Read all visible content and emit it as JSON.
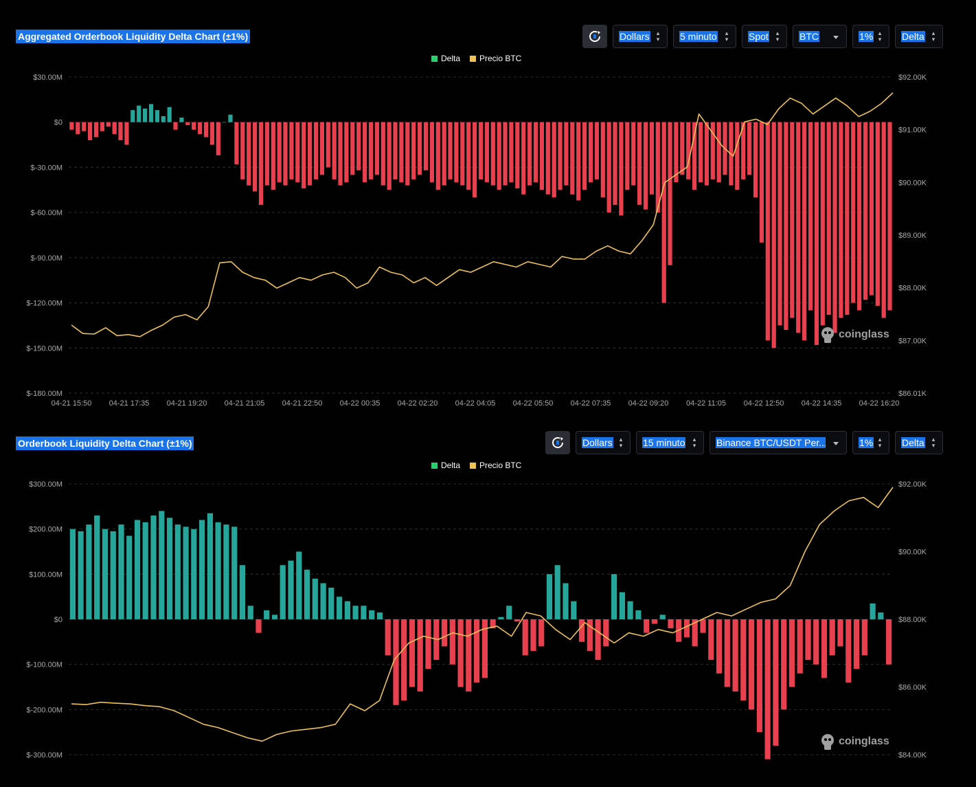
{
  "colors": {
    "background": "#000000",
    "positive": "#26a69a",
    "negative": "#e9404f",
    "price": "#f0c157",
    "grid": "#2a2d33",
    "axis_text": "#a9a9a9",
    "selection": "#1a73e8"
  },
  "brand": {
    "watermark": "coinglass",
    "icon": "coinglass-logo-icon"
  },
  "panels": [
    {
      "title": "Aggregated Orderbook Liquidity Delta Chart (±1%)",
      "controls": {
        "refresh_icon": "refresh-icon",
        "unit": "Dollars",
        "interval": "5 minuto",
        "market": "Spot",
        "coin": "BTC",
        "range": "1%",
        "mode": "Delta"
      },
      "legend": {
        "delta": "Delta",
        "price": "Precio BTC"
      }
    },
    {
      "title": "Orderbook Liquidity Delta Chart (±1%)",
      "controls": {
        "refresh_icon": "refresh-icon",
        "unit": "Dollars",
        "interval": "15 minuto",
        "pair": "Binance BTC/USDT Per...",
        "range": "1%",
        "mode": "Delta"
      },
      "legend": {
        "delta": "Delta",
        "price": "Precio BTC"
      }
    }
  ],
  "chart_data": [
    {
      "type": "bar",
      "title": "Aggregated Orderbook Liquidity Delta Chart (±1%)",
      "x_tick_labels": [
        "04-21 15:50",
        "04-21 17:35",
        "04-21 19:20",
        "04-21 21:05",
        "04-21 22:50",
        "04-22 00:35",
        "04-22 02:20",
        "04-22 04:05",
        "04-22 05:50",
        "04-22 07:35",
        "04-22 09:20",
        "04-22 11:05",
        "04-22 12:50",
        "04-22 14:35",
        "04-22 16:20"
      ],
      "y_left": {
        "ticks": [
          "$30.00M",
          "$0",
          "$-30.00M",
          "$-60.00M",
          "$-90.00M",
          "$-120.00M",
          "$-150.00M",
          "$-180.00M"
        ],
        "range": [
          -180,
          30
        ],
        "unit": "M USD"
      },
      "y_right": {
        "ticks": [
          "$92.00K",
          "$91.00K",
          "$90.00K",
          "$89.00K",
          "$88.00K",
          "$87.00K",
          "$86.01K"
        ],
        "range": [
          86010,
          92000
        ]
      },
      "grid": true,
      "legend_position": "top-center",
      "series": [
        {
          "name": "Delta",
          "kind": "bar",
          "sampled_values_M": [
            -5,
            -8,
            -6,
            -12,
            -10,
            -6,
            -3,
            -8,
            -12,
            -15,
            8,
            11,
            9,
            12,
            8,
            4,
            10,
            -5,
            3,
            -2,
            -5,
            -8,
            -10,
            -15,
            -22,
            0,
            5,
            -28,
            -38,
            -42,
            -46,
            -55,
            -42,
            -45,
            -40,
            -42,
            -38,
            -40,
            -44,
            -42,
            -38,
            -35,
            -30,
            -38,
            -42,
            -40,
            -35,
            -32,
            -40,
            -38,
            -35,
            -42,
            -45,
            -38,
            -40,
            -42,
            -38,
            -35,
            -32,
            -40,
            -45,
            -42,
            -38,
            -40,
            -42,
            -45,
            -50,
            -38,
            -40,
            -42,
            -45,
            -42,
            -40,
            -44,
            -48,
            -42,
            -40,
            -45,
            -48,
            -50,
            -45,
            -42,
            -48,
            -52,
            -45,
            -40,
            -38,
            -50,
            -60,
            -55,
            -62,
            -45,
            -42,
            -55,
            -58,
            -48,
            -60,
            -120,
            -95,
            -40,
            -35,
            -38,
            -45,
            -40,
            -42,
            -38,
            -40,
            -35,
            -42,
            -45,
            -38,
            -35,
            -50,
            -80,
            -145,
            -150,
            -135,
            -138,
            -130,
            -140,
            -145,
            -125,
            -148,
            -135,
            -128,
            -140,
            -130,
            -128,
            -120,
            -125,
            -118,
            -115,
            -122,
            -130,
            -125
          ],
          "color": "#26a69a / #e9404f"
        },
        {
          "name": "Precio BTC",
          "kind": "line",
          "sampled_values": [
            87300,
            87140,
            87130,
            87250,
            87100,
            87120,
            87080,
            87200,
            87300,
            87450,
            87500,
            87400,
            87650,
            88480,
            88500,
            88300,
            88200,
            88150,
            88000,
            88100,
            88200,
            88150,
            88250,
            88300,
            88200,
            88000,
            88100,
            88400,
            88300,
            88250,
            88100,
            88200,
            88050,
            88200,
            88350,
            88300,
            88400,
            88500,
            88450,
            88400,
            88500,
            88450,
            88400,
            88600,
            88550,
            88550,
            88700,
            88800,
            88700,
            88650,
            88900,
            89200,
            90000,
            90150,
            90300,
            91300,
            91000,
            90700,
            90500,
            91150,
            91200,
            91100,
            91400,
            91600,
            91500,
            91300,
            91450,
            91600,
            91450,
            91250,
            91350,
            91500,
            91700
          ],
          "color": "#f0c157"
        }
      ]
    },
    {
      "type": "bar",
      "title": "Orderbook Liquidity Delta Chart (±1%)",
      "x_tick_labels": [],
      "y_left": {
        "ticks": [
          "$300.00M",
          "$200.00M",
          "$100.00M",
          "$0",
          "$-100.00M",
          "$-200.00M",
          "$-300.00M"
        ],
        "range": [
          -300,
          300
        ],
        "unit": "M USD"
      },
      "y_right": {
        "ticks": [
          "$92.00K",
          "$90.00K",
          "$88.00K",
          "$86.00K",
          "$84.00K"
        ],
        "range": [
          84000,
          92000
        ]
      },
      "grid": true,
      "legend_position": "top-center",
      "series": [
        {
          "name": "Delta",
          "kind": "bar",
          "sampled_values_M": [
            200,
            195,
            210,
            230,
            200,
            195,
            210,
            185,
            220,
            215,
            230,
            240,
            225,
            210,
            205,
            200,
            220,
            235,
            215,
            210,
            205,
            120,
            30,
            -30,
            20,
            10,
            120,
            130,
            150,
            110,
            90,
            80,
            70,
            50,
            40,
            30,
            30,
            20,
            15,
            -80,
            -190,
            -180,
            -150,
            -160,
            -110,
            -90,
            -60,
            -100,
            -150,
            -160,
            -140,
            -130,
            -20,
            5,
            30,
            -5,
            -80,
            -70,
            -60,
            100,
            120,
            80,
            40,
            -50,
            -70,
            -90,
            -60,
            100,
            60,
            40,
            20,
            -30,
            -10,
            10,
            -20,
            -50,
            -40,
            -60,
            -30,
            -90,
            -120,
            -150,
            -160,
            -180,
            -200,
            -250,
            -310,
            -280,
            -200,
            -150,
            -120,
            -90,
            -100,
            -130,
            -80,
            -60,
            -140,
            -110,
            -80,
            35,
            15,
            -100
          ],
          "color": "#26a69a / #e9404f"
        },
        {
          "name": "Precio BTC",
          "kind": "line",
          "sampled_values": [
            85500,
            85480,
            85550,
            85520,
            85500,
            85450,
            85420,
            85300,
            85100,
            84900,
            84800,
            84650,
            84500,
            84400,
            84600,
            84700,
            84750,
            84800,
            84900,
            85500,
            85300,
            85600,
            86800,
            87300,
            87500,
            87400,
            87600,
            87500,
            87700,
            87800,
            87500,
            88200,
            88100,
            87700,
            87400,
            87900,
            87600,
            87300,
            87600,
            87500,
            87700,
            87600,
            87800,
            88000,
            88200,
            88100,
            88300,
            88500,
            88600,
            89000,
            90000,
            90800,
            91200,
            91500,
            91600,
            91300,
            91900
          ],
          "color": "#f0c157"
        }
      ]
    }
  ]
}
